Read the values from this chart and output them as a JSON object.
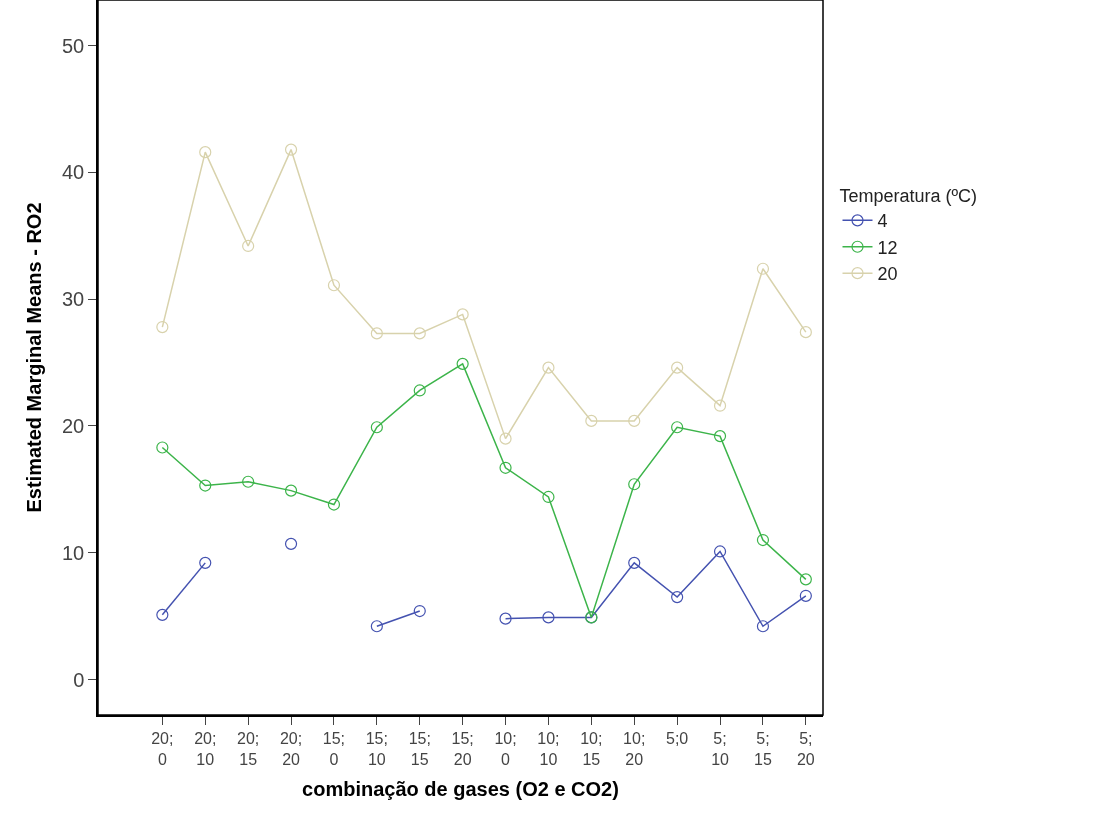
{
  "chart_data": {
    "type": "line",
    "xlabel": "combinação de gases (O2 e CO2)",
    "ylabel": "Estimated Marginal Means - RO2",
    "legend_title": "Temperatura (ºC)",
    "categories": [
      "20; 0",
      "20; 10",
      "20; 15",
      "20; 20",
      "15; 0",
      "15; 10",
      "15; 15",
      "15; 20",
      "10; 0",
      "10; 10",
      "10; 15",
      "10; 20",
      "5;0",
      "5; 10",
      "5; 15",
      "5; 20"
    ],
    "series": [
      {
        "name": "4",
        "color": "#4452b0",
        "values": [
          5.1,
          9.2,
          null,
          10.7,
          null,
          4.2,
          5.4,
          null,
          4.8,
          4.9,
          4.9,
          9.2,
          6.5,
          10.1,
          4.2,
          6.6
        ]
      },
      {
        "name": "12",
        "color": "#3cb44a",
        "values": [
          18.3,
          15.3,
          15.6,
          14.9,
          13.8,
          19.9,
          22.8,
          24.9,
          16.7,
          14.4,
          4.9,
          15.4,
          19.9,
          19.2,
          11.0,
          7.9
        ]
      },
      {
        "name": "20",
        "color": "#d8d2ac",
        "values": [
          27.8,
          41.6,
          34.2,
          41.8,
          31.1,
          27.3,
          27.3,
          28.8,
          19.0,
          24.6,
          20.4,
          20.4,
          24.6,
          21.6,
          32.4,
          27.4
        ]
      }
    ],
    "ylim": [
      -2.8,
      53.6
    ],
    "yticks": [
      0,
      10,
      20,
      30,
      40,
      50
    ],
    "legend": "right",
    "marker": "circle",
    "line_style": "solid"
  }
}
